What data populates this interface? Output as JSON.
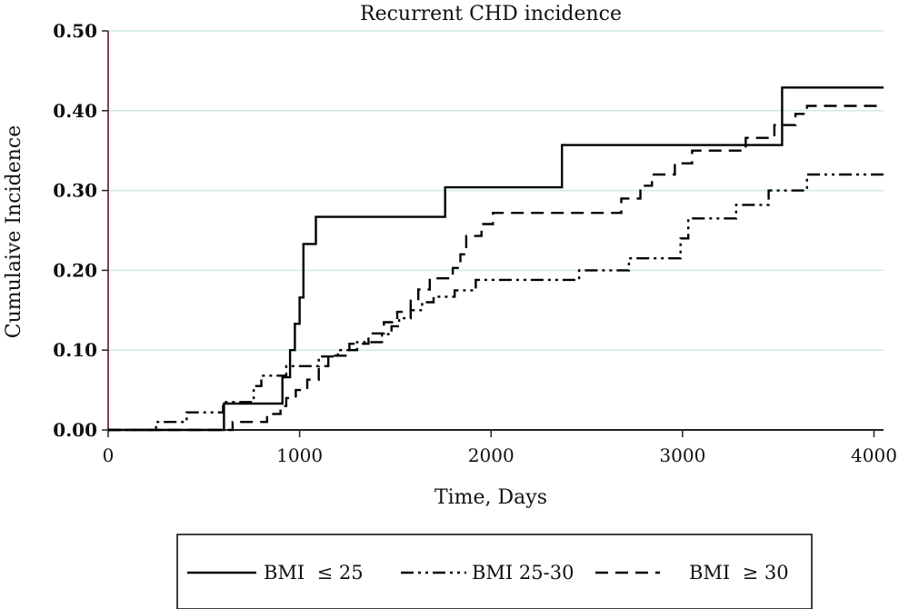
{
  "chart_data": {
    "type": "line",
    "step": true,
    "title": "Recurrent CHD incidence",
    "xlabel": "Time, Days",
    "ylabel": "Cumulaive Incidence",
    "xlim": [
      0,
      4050
    ],
    "ylim": [
      0,
      0.5
    ],
    "x_ticks": [
      0,
      1000,
      2000,
      3000,
      4000
    ],
    "x_tick_labels": [
      "0",
      "1000",
      "2000",
      "3000",
      "4000"
    ],
    "y_ticks": [
      0,
      0.1,
      0.2,
      0.3,
      0.4,
      0.5
    ],
    "y_tick_labels": [
      "0.00",
      "0.10",
      "0.20",
      "0.30",
      "0.40",
      "0.50"
    ],
    "grid": "horizontal",
    "legend_position": "bottom",
    "series": [
      {
        "name": "BMI  ≤ 25",
        "style": "solid",
        "color": "#000000",
        "points": [
          [
            0,
            0
          ],
          [
            605,
            0
          ],
          [
            605,
            0.033
          ],
          [
            910,
            0.033
          ],
          [
            910,
            0.066
          ],
          [
            950,
            0.066
          ],
          [
            950,
            0.1
          ],
          [
            975,
            0.1
          ],
          [
            975,
            0.133
          ],
          [
            1000,
            0.133
          ],
          [
            1000,
            0.166
          ],
          [
            1020,
            0.166
          ],
          [
            1020,
            0.233
          ],
          [
            1085,
            0.233
          ],
          [
            1085,
            0.267
          ],
          [
            1760,
            0.267
          ],
          [
            1760,
            0.304
          ],
          [
            2370,
            0.304
          ],
          [
            2370,
            0.357
          ],
          [
            3520,
            0.357
          ],
          [
            3520,
            0.429
          ],
          [
            4050,
            0.429
          ]
        ]
      },
      {
        "name": "BMI 25-30",
        "style": "dashdotdot",
        "color": "#000000",
        "points": [
          [
            0,
            0
          ],
          [
            250,
            0
          ],
          [
            250,
            0.01
          ],
          [
            410,
            0.01
          ],
          [
            410,
            0.022
          ],
          [
            600,
            0.022
          ],
          [
            600,
            0.035
          ],
          [
            760,
            0.035
          ],
          [
            760,
            0.055
          ],
          [
            800,
            0.055
          ],
          [
            800,
            0.068
          ],
          [
            930,
            0.068
          ],
          [
            930,
            0.08
          ],
          [
            1100,
            0.08
          ],
          [
            1100,
            0.092
          ],
          [
            1200,
            0.092
          ],
          [
            1200,
            0.1
          ],
          [
            1300,
            0.1
          ],
          [
            1300,
            0.11
          ],
          [
            1430,
            0.11
          ],
          [
            1430,
            0.12
          ],
          [
            1480,
            0.12
          ],
          [
            1480,
            0.13
          ],
          [
            1520,
            0.13
          ],
          [
            1520,
            0.14
          ],
          [
            1580,
            0.14
          ],
          [
            1580,
            0.15
          ],
          [
            1640,
            0.15
          ],
          [
            1640,
            0.16
          ],
          [
            1700,
            0.16
          ],
          [
            1700,
            0.167
          ],
          [
            1810,
            0.167
          ],
          [
            1810,
            0.175
          ],
          [
            1920,
            0.175
          ],
          [
            1920,
            0.188
          ],
          [
            2460,
            0.188
          ],
          [
            2460,
            0.2
          ],
          [
            2720,
            0.2
          ],
          [
            2720,
            0.215
          ],
          [
            2990,
            0.215
          ],
          [
            2990,
            0.24
          ],
          [
            3030,
            0.24
          ],
          [
            3030,
            0.265
          ],
          [
            3280,
            0.265
          ],
          [
            3280,
            0.282
          ],
          [
            3450,
            0.282
          ],
          [
            3450,
            0.3
          ],
          [
            3650,
            0.3
          ],
          [
            3650,
            0.32
          ],
          [
            4050,
            0.32
          ]
        ]
      },
      {
        "name": "BMI  ≥ 30",
        "style": "dashed",
        "color": "#000000",
        "points": [
          [
            0,
            0
          ],
          [
            650,
            0
          ],
          [
            650,
            0.01
          ],
          [
            830,
            0.01
          ],
          [
            830,
            0.02
          ],
          [
            900,
            0.02
          ],
          [
            900,
            0.03
          ],
          [
            930,
            0.03
          ],
          [
            930,
            0.04
          ],
          [
            980,
            0.04
          ],
          [
            980,
            0.05
          ],
          [
            1040,
            0.05
          ],
          [
            1040,
            0.063
          ],
          [
            1100,
            0.063
          ],
          [
            1100,
            0.08
          ],
          [
            1150,
            0.08
          ],
          [
            1150,
            0.093
          ],
          [
            1260,
            0.093
          ],
          [
            1260,
            0.108
          ],
          [
            1360,
            0.108
          ],
          [
            1360,
            0.121
          ],
          [
            1440,
            0.121
          ],
          [
            1440,
            0.135
          ],
          [
            1510,
            0.135
          ],
          [
            1510,
            0.148
          ],
          [
            1580,
            0.148
          ],
          [
            1580,
            0.162
          ],
          [
            1620,
            0.162
          ],
          [
            1620,
            0.176
          ],
          [
            1680,
            0.176
          ],
          [
            1680,
            0.19
          ],
          [
            1800,
            0.19
          ],
          [
            1800,
            0.203
          ],
          [
            1840,
            0.203
          ],
          [
            1840,
            0.22
          ],
          [
            1870,
            0.22
          ],
          [
            1870,
            0.243
          ],
          [
            1950,
            0.243
          ],
          [
            1950,
            0.258
          ],
          [
            2010,
            0.258
          ],
          [
            2010,
            0.272
          ],
          [
            2680,
            0.272
          ],
          [
            2680,
            0.29
          ],
          [
            2780,
            0.29
          ],
          [
            2780,
            0.306
          ],
          [
            2840,
            0.306
          ],
          [
            2840,
            0.32
          ],
          [
            2960,
            0.32
          ],
          [
            2960,
            0.334
          ],
          [
            3050,
            0.334
          ],
          [
            3050,
            0.35
          ],
          [
            3330,
            0.35
          ],
          [
            3330,
            0.366
          ],
          [
            3480,
            0.366
          ],
          [
            3480,
            0.382
          ],
          [
            3590,
            0.382
          ],
          [
            3590,
            0.396
          ],
          [
            3650,
            0.396
          ],
          [
            3650,
            0.406
          ],
          [
            4050,
            0.406
          ]
        ]
      }
    ]
  }
}
